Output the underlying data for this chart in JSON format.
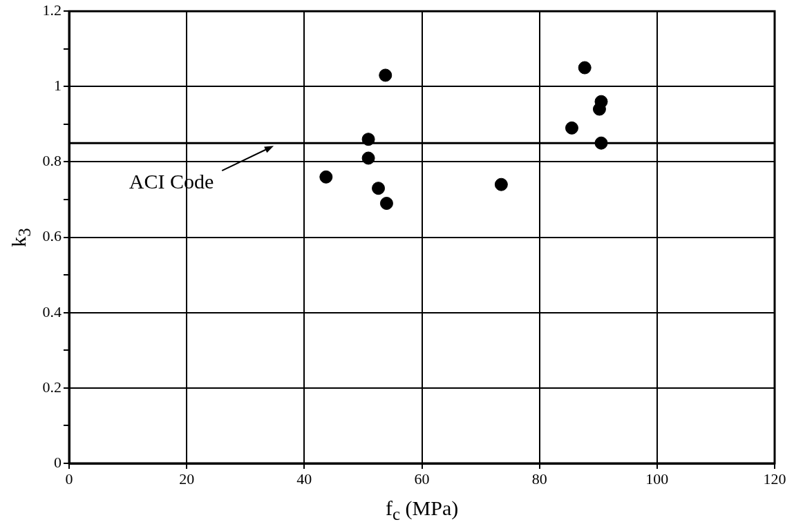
{
  "chart_data": {
    "type": "scatter",
    "xlabel": "f$_{c}$  (MPa)",
    "ylabel": "k$_{3}$",
    "x": [
      43.7,
      50.9,
      50.9,
      52.6,
      54.0,
      53.8,
      73.5,
      85.5,
      87.7,
      90.2,
      90.5,
      90.5
    ],
    "series": [
      {
        "color": "#000000",
        "values": [
          0.76,
          0.86,
          0.81,
          0.73,
          0.69,
          1.03,
          0.74,
          0.89,
          1.05,
          0.94,
          0.96,
          0.85
        ]
      }
    ],
    "xlim": [
      0,
      120
    ],
    "xticks": [
      0,
      20,
      40,
      60,
      80,
      100,
      120
    ],
    "ylim": [
      0,
      1.2
    ],
    "yticks": [
      0,
      {
        "value": 0.1,
        "label": null
      },
      0.2,
      {
        "value": 0.3,
        "label": null
      },
      0.4,
      {
        "value": 0.5,
        "label": null
      },
      0.6,
      {
        "value": 0.7,
        "label": null
      },
      0.8,
      {
        "value": 0.9,
        "label": null
      },
      1,
      {
        "value": 1.1,
        "label": null
      },
      1.2
    ],
    "ref_lines": [
      {
        "axis": "y",
        "value": 0.85,
        "label": "ACI Code",
        "color": "#000000"
      }
    ],
    "grid": true,
    "marker": "circle",
    "legend": false
  }
}
